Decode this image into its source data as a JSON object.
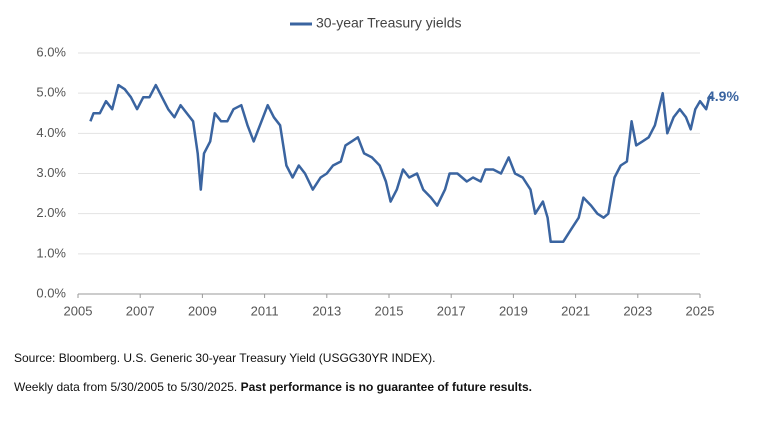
{
  "chart_data": {
    "type": "line",
    "x": [
      2005.4,
      2005.5,
      2005.7,
      2005.9,
      2006.1,
      2006.3,
      2006.5,
      2006.7,
      2006.9,
      2007.1,
      2007.3,
      2007.5,
      2007.7,
      2007.9,
      2008.1,
      2008.3,
      2008.5,
      2008.7,
      2008.85,
      2008.95,
      2009.05,
      2009.25,
      2009.4,
      2009.6,
      2009.8,
      2010.0,
      2010.25,
      2010.45,
      2010.65,
      2010.9,
      2011.1,
      2011.3,
      2011.5,
      2011.7,
      2011.9,
      2012.1,
      2012.3,
      2012.55,
      2012.8,
      2013.0,
      2013.2,
      2013.45,
      2013.6,
      2013.8,
      2014.0,
      2014.2,
      2014.45,
      2014.7,
      2014.9,
      2015.05,
      2015.25,
      2015.45,
      2015.65,
      2015.9,
      2016.1,
      2016.35,
      2016.55,
      2016.8,
      2016.95,
      2017.2,
      2017.5,
      2017.7,
      2017.95,
      2018.1,
      2018.35,
      2018.6,
      2018.85,
      2019.05,
      2019.3,
      2019.55,
      2019.7,
      2019.95,
      2020.1,
      2020.2,
      2020.4,
      2020.6,
      2020.85,
      2021.1,
      2021.25,
      2021.5,
      2021.7,
      2021.9,
      2022.05,
      2022.25,
      2022.45,
      2022.65,
      2022.8,
      2022.95,
      2023.15,
      2023.35,
      2023.55,
      2023.8,
      2023.95,
      2024.15,
      2024.35,
      2024.55,
      2024.7,
      2024.85,
      2025.0,
      2025.2,
      2025.3,
      2025.42
    ],
    "series": [
      {
        "name": "30-year Treasury yields",
        "color": "#3a64a0",
        "values": [
          4.3,
          4.5,
          4.5,
          4.8,
          4.6,
          5.2,
          5.1,
          4.9,
          4.6,
          4.9,
          4.9,
          5.2,
          4.9,
          4.6,
          4.4,
          4.7,
          4.5,
          4.3,
          3.5,
          2.6,
          3.5,
          3.8,
          4.5,
          4.3,
          4.3,
          4.6,
          4.7,
          4.2,
          3.8,
          4.3,
          4.7,
          4.4,
          4.2,
          3.2,
          2.9,
          3.2,
          3.0,
          2.6,
          2.9,
          3.0,
          3.2,
          3.3,
          3.7,
          3.8,
          3.9,
          3.5,
          3.4,
          3.2,
          2.8,
          2.3,
          2.6,
          3.1,
          2.9,
          3.0,
          2.6,
          2.4,
          2.2,
          2.6,
          3.0,
          3.0,
          2.8,
          2.9,
          2.8,
          3.1,
          3.1,
          3.0,
          3.4,
          3.0,
          2.9,
          2.6,
          2.0,
          2.3,
          1.9,
          1.3,
          1.3,
          1.3,
          1.6,
          1.9,
          2.4,
          2.2,
          2.0,
          1.9,
          2.0,
          2.9,
          3.2,
          3.3,
          4.3,
          3.7,
          3.8,
          3.9,
          4.2,
          5.0,
          4.0,
          4.4,
          4.6,
          4.4,
          4.1,
          4.6,
          4.8,
          4.6,
          4.9,
          4.9
        ]
      }
    ],
    "xlim": [
      2005,
      2025
    ],
    "xticks": [
      2005,
      2007,
      2009,
      2011,
      2013,
      2015,
      2017,
      2019,
      2021,
      2023,
      2025
    ],
    "ylim": [
      0,
      6
    ],
    "yticks": [
      {
        "value": 0,
        "label": "0.0%"
      },
      {
        "value": 1,
        "label": "1.0%"
      },
      {
        "value": 2,
        "label": "2.0%"
      },
      {
        "value": 3,
        "label": "3.0%"
      },
      {
        "value": 4,
        "label": "4.0%"
      },
      {
        "value": 5,
        "label": "5.0%"
      },
      {
        "value": 6,
        "label": "6.0%"
      }
    ],
    "grid": true,
    "end_label": {
      "value": 4.9,
      "label": "4.9%"
    },
    "source": "Source: Bloomberg. U.S. Generic 30-year Treasury Yield (USGG30YR INDEX).",
    "note": "Weekly data from 5/30/2005 to 5/30/2025.",
    "note_bold": "Past performance is no guarantee of future results."
  }
}
